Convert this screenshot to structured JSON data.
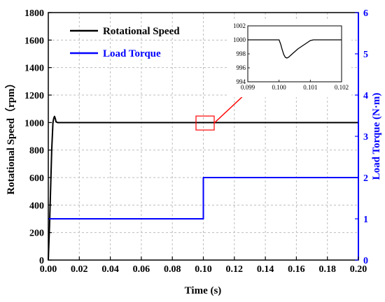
{
  "chart_data": {
    "type": "line",
    "xlabel": "Time (s)",
    "ylabel_left": "Rotational Speed（rpm）",
    "ylabel_right": "Load Torque (N·m)",
    "xlim": [
      0,
      0.2
    ],
    "ylim_left": [
      0,
      1800
    ],
    "ylim_right": [
      0,
      6
    ],
    "x_ticks": [
      "0.00",
      "0.02",
      "0.04",
      "0.06",
      "0.08",
      "0.10",
      "0.12",
      "0.14",
      "0.16",
      "0.18",
      "0.20"
    ],
    "y_ticks_left": [
      "0",
      "200",
      "400",
      "600",
      "800",
      "1000",
      "1200",
      "1400",
      "1600",
      "1800"
    ],
    "y_ticks_right": [
      "0",
      "1",
      "2",
      "3",
      "4",
      "5",
      "6"
    ],
    "grid": true,
    "legend_position": "top-left",
    "series": [
      {
        "name": "Rotational Speed",
        "axis": "left",
        "color": "#000000",
        "x": [
          0,
          0.0008,
          0.0015,
          0.0022,
          0.003,
          0.0035,
          0.004,
          0.0045,
          0.005,
          0.006,
          0.008,
          0.2
        ],
        "y": [
          0,
          250,
          520,
          800,
          1000,
          1030,
          1045,
          1030,
          1005,
          1000,
          1000,
          1000
        ]
      },
      {
        "name": "Load Torque",
        "axis": "right",
        "color": "#0000ff",
        "x": [
          0,
          0.1,
          0.1,
          0.2
        ],
        "y": [
          1,
          1,
          2,
          2
        ]
      }
    ],
    "inset": {
      "xlim": [
        0.099,
        0.102
      ],
      "ylim": [
        994,
        1002
      ],
      "x_ticks": [
        "0.099",
        "0.100",
        "0.101",
        "0.102"
      ],
      "y_ticks": [
        "994",
        "996",
        "998",
        "1000",
        "1002"
      ],
      "x": [
        0.099,
        0.1,
        0.10005,
        0.1001,
        0.10015,
        0.1002,
        0.10025,
        0.1003,
        0.1004,
        0.1005,
        0.1006,
        0.1007,
        0.1008,
        0.1009,
        0.101,
        0.1011,
        0.102
      ],
      "y": [
        1000,
        1000,
        999.4,
        998.6,
        997.9,
        997.5,
        997.4,
        997.5,
        997.9,
        998.3,
        998.7,
        999.0,
        999.3,
        999.6,
        999.9,
        1000,
        1000
      ]
    },
    "zoom_box_color": "#ff0000"
  }
}
